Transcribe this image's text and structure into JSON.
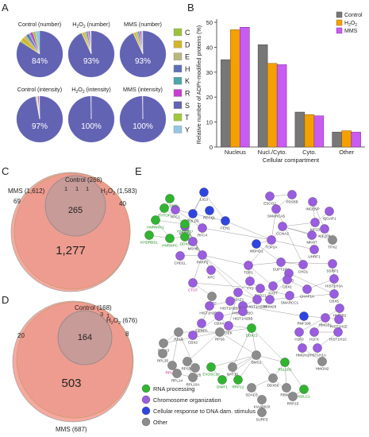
{
  "panels": {
    "A": {
      "label": "A",
      "pies": [
        {
          "title_parts": [
            "Control (number)"
          ],
          "values": {
            "C": 1,
            "D": 3,
            "E": 2,
            "H": 2,
            "K": 1,
            "R": 2,
            "S": 84,
            "T": 2,
            "Y": 3
          },
          "label": "84%"
        },
        {
          "title_parts": [
            "H",
            "2",
            "O",
            "2",
            " (number)"
          ],
          "values": {
            "C": 0.5,
            "D": 1.5,
            "E": 1.5,
            "H": 1,
            "K": 0.5,
            "R": 1,
            "S": 93,
            "T": 0.5,
            "Y": 0.5
          },
          "label": "93%"
        },
        {
          "title_parts": [
            "MMS (number)"
          ],
          "values": {
            "C": 0.5,
            "D": 1.5,
            "E": 1.5,
            "H": 1,
            "K": 0.5,
            "R": 1,
            "S": 93,
            "T": 0.5,
            "Y": 0.5
          },
          "label": "93%"
        },
        {
          "title_parts": [
            "Control (intensity)"
          ],
          "values": {
            "C": 0.2,
            "D": 0.6,
            "E": 0.4,
            "H": 0.3,
            "K": 0.2,
            "R": 0.8,
            "S": 97,
            "T": 0.3,
            "Y": 0.2
          },
          "label": "97%"
        },
        {
          "title_parts": [
            "H",
            "2",
            "O",
            "2",
            " (intensity)"
          ],
          "values": {
            "C": 0,
            "D": 0.2,
            "E": 0.1,
            "H": 0,
            "K": 0,
            "R": 0.1,
            "S": 99.6,
            "T": 0,
            "Y": 0
          },
          "label": "100%"
        },
        {
          "title_parts": [
            "MMS (intensity)"
          ],
          "values": {
            "C": 0,
            "D": 0.2,
            "E": 0.1,
            "H": 0,
            "K": 0,
            "R": 0.1,
            "S": 99.6,
            "T": 0,
            "Y": 0
          },
          "label": "100%"
        }
      ],
      "legend": [
        "C",
        "D",
        "E",
        "H",
        "K",
        "R",
        "S",
        "T",
        "Y"
      ]
    },
    "B": {
      "label": "B"
    },
    "C": {
      "label": "C"
    },
    "D": {
      "label": "D"
    },
    "E": {
      "label": "E"
    }
  },
  "colors": {
    "C": "#9cc23d",
    "D": "#d3b52a",
    "E": "#b7b87a",
    "H": "#5c6fb8",
    "K": "#4aa6a8",
    "R": "#c83ed2",
    "S": "#6363b4",
    "T": "#9fc93a",
    "Y": "#93c7e6",
    "control": "#777777",
    "h2o2": "#f4a000",
    "mms": "#c85bf0",
    "venn_fill": "#ee9a90",
    "rna": "#2fb52f",
    "chrom": "#9a5ce0",
    "dna": "#2f45e0",
    "other": "#8c8c8c"
  },
  "chart_data": [
    {
      "type": "pie",
      "panel": "A",
      "legend": [
        "C",
        "D",
        "E",
        "H",
        "K",
        "R",
        "S",
        "T",
        "Y"
      ],
      "pies": [
        {
          "title": "Control (number)",
          "S_percent": 84
        },
        {
          "title": "H2O2 (number)",
          "S_percent": 93
        },
        {
          "title": "MMS (number)",
          "S_percent": 93
        },
        {
          "title": "Control (intensity)",
          "S_percent": 97
        },
        {
          "title": "H2O2 (intensity)",
          "S_percent": 100
        },
        {
          "title": "MMS (intensity)",
          "S_percent": 100
        }
      ]
    },
    {
      "type": "bar",
      "panel": "B",
      "categories": [
        "Nucleus",
        "Nucl./Cyto.",
        "Cyto.",
        "Other"
      ],
      "series": [
        {
          "name": "Control",
          "values": [
            35,
            41,
            14,
            6
          ]
        },
        {
          "name": "H2O2",
          "values": [
            47,
            33.5,
            13,
            6.5
          ]
        },
        {
          "name": "MMS",
          "values": [
            48,
            33,
            12.5,
            6
          ]
        }
      ],
      "ylabel": "Relative number of ADPr-modified proteins (%)",
      "xlabel": "Cellular compartment",
      "ylim": [
        0,
        50
      ],
      "yticks": [
        0,
        10,
        20,
        30,
        40,
        50
      ],
      "legend_position": "top-right"
    },
    {
      "type": "venn",
      "panel": "C",
      "sets": [
        {
          "name": "Control",
          "size": 268
        },
        {
          "name": "H2O2",
          "size": 1583
        },
        {
          "name": "MMS",
          "size": 1612
        }
      ],
      "regions": {
        "control_only": 1,
        "control_h2o2_only": 1,
        "control_mms_only": 1,
        "h2o2_only": 40,
        "mms_only": 69,
        "all": 265,
        "h2o2_mms": 1277
      }
    },
    {
      "type": "venn",
      "panel": "D",
      "sets": [
        {
          "name": "Control",
          "size": 168
        },
        {
          "name": "H2O2",
          "size": 676
        },
        {
          "name": "MMS",
          "size": 687
        }
      ],
      "regions": {
        "control_only": 3,
        "control_h2o2_only": 1,
        "h2o2_only": 8,
        "mms_only": 20,
        "all": 164,
        "h2o2_mms": 503
      }
    }
  ],
  "barB": {
    "title_letter": "B",
    "legend": [
      {
        "parts": [
          "Control"
        ]
      },
      {
        "parts": [
          "H",
          "2",
          "O",
          "2"
        ]
      },
      {
        "parts": [
          "MMS"
        ]
      }
    ]
  },
  "vennC": {
    "label_control": "Control (268)",
    "label_mms": "MMS (1,612)",
    "label_h2o2_parts": [
      "H",
      "2",
      "O",
      "2",
      " (1,583)"
    ],
    "n_top1": "1",
    "n_top2": "1",
    "n_top3": "1",
    "n_mms": "69",
    "n_h2o2": "40",
    "n_all": "265",
    "n_big": "1,277"
  },
  "vennD": {
    "label_control": "Control (168)",
    "label_mms": "MMS (687)",
    "label_h2o2_parts": [
      "H",
      "2",
      "O",
      "2",
      " (676)"
    ],
    "n_top3": "3",
    "n_top1": "1",
    "n_mms": "20",
    "n_h2o2": "8",
    "n_all": "164",
    "n_big": "503"
  },
  "network": {
    "legend": [
      "RNA processing",
      "Chromosome organization",
      "Cellular response to DNA dam. stimulus",
      "Other"
    ]
  }
}
